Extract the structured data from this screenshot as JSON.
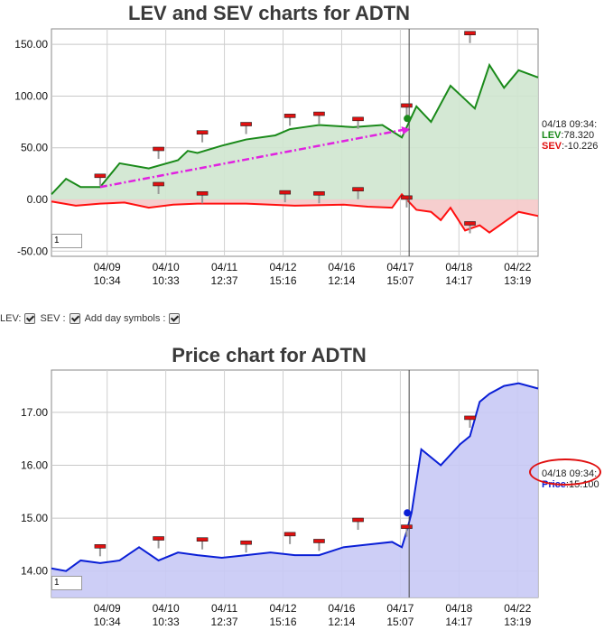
{
  "lev_chart": {
    "title": "LEV and SEV charts for ADTN",
    "y_ticks": [
      "150.00",
      "100.00",
      "50.00",
      "0.00",
      "-50.00"
    ],
    "x_ticks": [
      {
        "date": "04/09",
        "time": "10:34"
      },
      {
        "date": "04/10",
        "time": "10:33"
      },
      {
        "date": "04/11",
        "time": "12:37"
      },
      {
        "date": "04/12",
        "time": "15:16"
      },
      {
        "date": "04/16",
        "time": "12:14"
      },
      {
        "date": "04/17",
        "time": "15:07"
      },
      {
        "date": "04/18",
        "time": "14:17"
      },
      {
        "date": "04/22",
        "time": "13:19"
      }
    ],
    "zoom_value": "1",
    "info": {
      "timestamp": "04/18 09:34:",
      "lev_label": "LEV",
      "lev_value": ":78.320",
      "sev_label": "SEV",
      "sev_value": ":-10.226"
    }
  },
  "controls": {
    "lev_label": "LEV:",
    "sev_label": "SEV :",
    "day_symbols_label": "Add day symbols :"
  },
  "price_chart": {
    "title": "Price chart for ADTN",
    "y_ticks": [
      "17.00",
      "16.00",
      "15.00",
      "14.00"
    ],
    "x_ticks": [
      {
        "date": "04/09",
        "time": "10:34"
      },
      {
        "date": "04/10",
        "time": "10:33"
      },
      {
        "date": "04/11",
        "time": "12:37"
      },
      {
        "date": "04/12",
        "time": "15:16"
      },
      {
        "date": "04/16",
        "time": "12:14"
      },
      {
        "date": "04/17",
        "time": "15:07"
      },
      {
        "date": "04/18",
        "time": "14:17"
      },
      {
        "date": "04/22",
        "time": "13:19"
      }
    ],
    "zoom_value": "1",
    "info": {
      "timestamp": "04/18 09:34:",
      "price_label": "Price",
      "price_value": ":15.100"
    }
  },
  "colors": {
    "lev": "#1a8a1a",
    "lev_fill": "#cfe5cf",
    "sev": "#ff1010",
    "sev_fill": "#f5c9c9",
    "price": "#0a1fd6",
    "price_fill": "#c8c9f5",
    "trend": "#e022e0",
    "marker": "#e01010"
  },
  "chart_data": [
    {
      "type": "line",
      "title": "LEV and SEV charts for ADTN",
      "ylim": [
        -55,
        165
      ],
      "categories": [
        "04/09 10:34",
        "04/10 10:33",
        "04/11 12:37",
        "04/12 15:16",
        "04/16 12:14",
        "04/17 15:07",
        "04/18 14:17",
        "04/22 13:19"
      ],
      "series": [
        {
          "name": "LEV",
          "x": [
            0,
            3,
            6,
            10,
            14,
            20,
            26,
            28,
            30,
            35,
            40,
            46,
            49,
            52,
            55,
            62,
            68,
            72,
            75,
            78,
            82,
            87,
            90,
            93,
            96,
            100
          ],
          "values": [
            5,
            20,
            12,
            12,
            35,
            30,
            38,
            47,
            45,
            52,
            58,
            62,
            68,
            70,
            72,
            70,
            72,
            60,
            90,
            75,
            110,
            88,
            130,
            108,
            125,
            118
          ]
        },
        {
          "name": "SEV",
          "x": [
            0,
            5,
            10,
            15,
            20,
            25,
            30,
            40,
            50,
            60,
            65,
            70,
            72,
            75,
            78,
            80,
            82,
            85,
            88,
            90,
            93,
            96,
            100
          ],
          "values": [
            -2,
            -6,
            -4,
            -3,
            -8,
            -5,
            -4,
            -4,
            -6,
            -5,
            -7,
            -8,
            5,
            -10,
            -12,
            -20,
            -8,
            -30,
            -25,
            -32,
            -22,
            -12,
            -16
          ]
        }
      ],
      "markers_y": [
        22,
        48,
        14,
        64,
        5,
        72,
        80,
        6,
        82,
        5,
        77,
        9,
        90,
        1,
        160,
        -24
      ],
      "markers_x": [
        10,
        22,
        22,
        31,
        31,
        40,
        49,
        48,
        55,
        55,
        63,
        63,
        73,
        73,
        86,
        86
      ],
      "current_value": {
        "LEV": 78.32,
        "SEV": -10.226
      },
      "trend": {
        "from": [
          10,
          12
        ],
        "to": [
          73,
          68
        ]
      }
    },
    {
      "type": "area",
      "title": "Price chart for ADTN",
      "ylim": [
        13.5,
        17.8
      ],
      "categories": [
        "04/09 10:34",
        "04/10 10:33",
        "04/11 12:37",
        "04/12 15:16",
        "04/16 12:14",
        "04/17 15:07",
        "04/18 14:17",
        "04/22 13:19"
      ],
      "series": [
        {
          "name": "Price",
          "x": [
            0,
            3,
            6,
            10,
            14,
            18,
            22,
            26,
            30,
            35,
            40,
            45,
            50,
            55,
            60,
            65,
            70,
            72,
            73,
            74,
            76,
            80,
            84,
            86,
            88,
            90,
            93,
            96,
            100
          ],
          "values": [
            14.05,
            14.0,
            14.2,
            14.15,
            14.2,
            14.45,
            14.2,
            14.35,
            14.3,
            14.25,
            14.3,
            14.35,
            14.3,
            14.3,
            14.45,
            14.5,
            14.55,
            14.45,
            14.75,
            15.1,
            16.3,
            16.0,
            16.4,
            16.55,
            17.2,
            17.35,
            17.5,
            17.55,
            17.45
          ]
        }
      ],
      "markers_y": [
        14.45,
        14.6,
        14.58,
        14.52,
        14.68,
        14.55,
        14.95,
        14.82,
        16.88
      ],
      "markers_x": [
        10,
        22,
        31,
        40,
        49,
        55,
        63,
        73,
        86
      ],
      "current_value": {
        "Price": 15.1
      }
    }
  ]
}
